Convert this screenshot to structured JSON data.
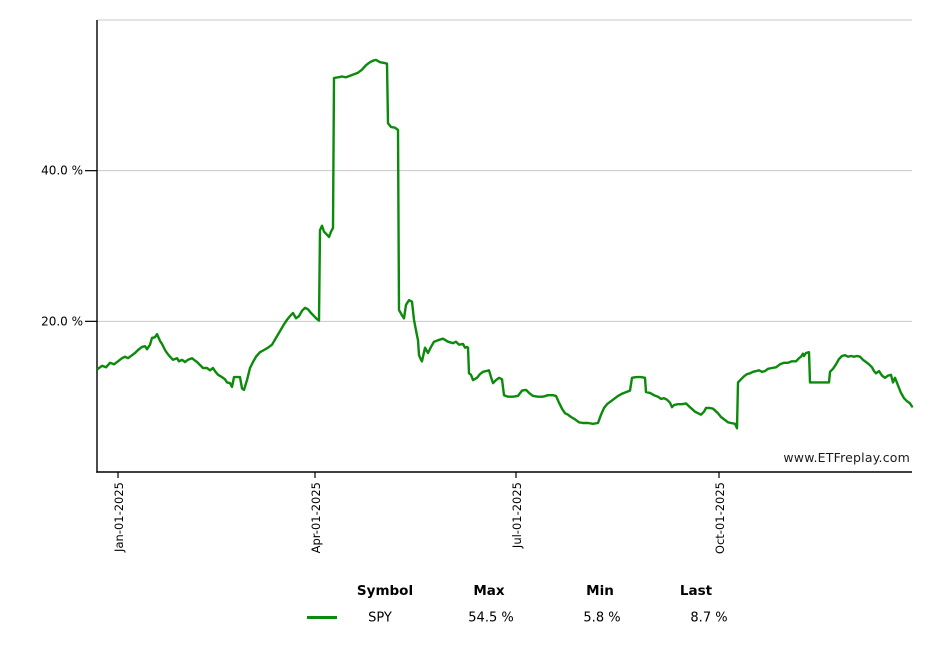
{
  "watermark": "www.ETFreplay.com",
  "colors": {
    "line": "#0b8a0b",
    "grid": "#c8c8c8",
    "axis": "#000000",
    "text": "#000000",
    "background": "#ffffff"
  },
  "chart_data": {
    "type": "line",
    "title": "",
    "xlabel": "",
    "ylabel": "",
    "grid": true,
    "legend_position": "bottom-table",
    "y_axis": {
      "lim": [
        0,
        60
      ],
      "unit": "%",
      "gridlines": [
        20,
        40,
        60
      ],
      "ticks": [
        {
          "value": 20,
          "label": "20.0 %"
        },
        {
          "value": 40,
          "label": "40.0 %"
        }
      ]
    },
    "x_axis": {
      "t_domain": [
        0,
        815
      ],
      "ticks": [
        {
          "t": 21,
          "label": "Jan-01-2025"
        },
        {
          "t": 218,
          "label": "Apr-01-2025"
        },
        {
          "t": 419,
          "label": "Jul-01-2025"
        },
        {
          "t": 622,
          "label": "Oct-01-2025"
        }
      ]
    },
    "series": [
      {
        "name": "SPY",
        "color": "#0b8a0b",
        "max_pct": 54.5,
        "min_pct": 5.8,
        "last_pct": 8.7,
        "points": [
          [
            1,
            13.7
          ],
          [
            5,
            14.1
          ],
          [
            9,
            13.9
          ],
          [
            13,
            14.5
          ],
          [
            17,
            14.3
          ],
          [
            21,
            14.7
          ],
          [
            25,
            15.1
          ],
          [
            28,
            15.3
          ],
          [
            31,
            15.1
          ],
          [
            35,
            15.5
          ],
          [
            38,
            15.8
          ],
          [
            41,
            16.2
          ],
          [
            45,
            16.6
          ],
          [
            48,
            16.7
          ],
          [
            50,
            16.3
          ],
          [
            53,
            16.9
          ],
          [
            55,
            17.8
          ],
          [
            58,
            17.9
          ],
          [
            60,
            18.3
          ],
          [
            63,
            17.4
          ],
          [
            65,
            17.0
          ],
          [
            68,
            16.2
          ],
          [
            70,
            15.8
          ],
          [
            73,
            15.3
          ],
          [
            76,
            14.9
          ],
          [
            80,
            15.1
          ],
          [
            82,
            14.7
          ],
          [
            85,
            14.9
          ],
          [
            88,
            14.6
          ],
          [
            91,
            14.9
          ],
          [
            95,
            15.1
          ],
          [
            97,
            14.9
          ],
          [
            100,
            14.6
          ],
          [
            103,
            14.2
          ],
          [
            106,
            13.8
          ],
          [
            110,
            13.8
          ],
          [
            113,
            13.5
          ],
          [
            116,
            13.8
          ],
          [
            118,
            13.4
          ],
          [
            121,
            12.9
          ],
          [
            125,
            12.6
          ],
          [
            128,
            12.3
          ],
          [
            130,
            11.9
          ],
          [
            133,
            11.8
          ],
          [
            135,
            11.3
          ],
          [
            137,
            12.6
          ],
          [
            143,
            12.6
          ],
          [
            145,
            11.1
          ],
          [
            147,
            10.9
          ],
          [
            150,
            12.2
          ],
          [
            153,
            13.8
          ],
          [
            156,
            14.6
          ],
          [
            159,
            15.3
          ],
          [
            163,
            15.9
          ],
          [
            167,
            16.2
          ],
          [
            171,
            16.5
          ],
          [
            175,
            16.9
          ],
          [
            179,
            17.8
          ],
          [
            183,
            18.7
          ],
          [
            187,
            19.6
          ],
          [
            190,
            20.2
          ],
          [
            193,
            20.7
          ],
          [
            196,
            21.1
          ],
          [
            199,
            20.4
          ],
          [
            202,
            20.7
          ],
          [
            205,
            21.4
          ],
          [
            208,
            21.8
          ],
          [
            211,
            21.6
          ],
          [
            214,
            21.1
          ],
          [
            217,
            20.7
          ],
          [
            220,
            20.3
          ],
          [
            222,
            20.1
          ],
          [
            223,
            32.1
          ],
          [
            225,
            32.7
          ],
          [
            227,
            31.9
          ],
          [
            230,
            31.5
          ],
          [
            232,
            31.2
          ],
          [
            234,
            31.9
          ],
          [
            236,
            32.4
          ],
          [
            237,
            52.3
          ],
          [
            241,
            52.4
          ],
          [
            245,
            52.5
          ],
          [
            249,
            52.4
          ],
          [
            253,
            52.6
          ],
          [
            257,
            52.8
          ],
          [
            261,
            53.0
          ],
          [
            265,
            53.4
          ],
          [
            269,
            54.0
          ],
          [
            273,
            54.4
          ],
          [
            276,
            54.6
          ],
          [
            279,
            54.7
          ],
          [
            283,
            54.4
          ],
          [
            287,
            54.3
          ],
          [
            290,
            54.2
          ],
          [
            291,
            46.3
          ],
          [
            294,
            45.8
          ],
          [
            298,
            45.7
          ],
          [
            301,
            45.4
          ],
          [
            302,
            21.5
          ],
          [
            305,
            20.8
          ],
          [
            307,
            20.4
          ],
          [
            309,
            22.2
          ],
          [
            312,
            22.8
          ],
          [
            315,
            22.6
          ],
          [
            317,
            20.2
          ],
          [
            319,
            18.8
          ],
          [
            321,
            17.5
          ],
          [
            322,
            15.5
          ],
          [
            324,
            14.9
          ],
          [
            325,
            14.7
          ],
          [
            328,
            16.5
          ],
          [
            331,
            15.8
          ],
          [
            334,
            16.6
          ],
          [
            337,
            17.3
          ],
          [
            341,
            17.5
          ],
          [
            346,
            17.7
          ],
          [
            351,
            17.3
          ],
          [
            356,
            17.1
          ],
          [
            359,
            17.3
          ],
          [
            362,
            16.9
          ],
          [
            366,
            17.0
          ],
          [
            368,
            16.5
          ],
          [
            370,
            16.6
          ],
          [
            371,
            16.5
          ],
          [
            372,
            13.1
          ],
          [
            374,
            12.9
          ],
          [
            376,
            12.2
          ],
          [
            380,
            12.5
          ],
          [
            383,
            13.0
          ],
          [
            386,
            13.3
          ],
          [
            389,
            13.4
          ],
          [
            392,
            13.5
          ],
          [
            394,
            12.6
          ],
          [
            396,
            11.8
          ],
          [
            399,
            12.2
          ],
          [
            402,
            12.5
          ],
          [
            405,
            12.3
          ],
          [
            407,
            10.2
          ],
          [
            411,
            10.0
          ],
          [
            416,
            10.0
          ],
          [
            421,
            10.1
          ],
          [
            425,
            10.8
          ],
          [
            429,
            10.9
          ],
          [
            432,
            10.5
          ],
          [
            436,
            10.1
          ],
          [
            441,
            10.0
          ],
          [
            446,
            10.0
          ],
          [
            451,
            10.2
          ],
          [
            456,
            10.2
          ],
          [
            459,
            10.1
          ],
          [
            462,
            9.2
          ],
          [
            465,
            8.4
          ],
          [
            468,
            7.8
          ],
          [
            471,
            7.6
          ],
          [
            474,
            7.3
          ],
          [
            478,
            7.0
          ],
          [
            482,
            6.6
          ],
          [
            486,
            6.5
          ],
          [
            491,
            6.5
          ],
          [
            496,
            6.4
          ],
          [
            501,
            6.5
          ],
          [
            504,
            7.6
          ],
          [
            507,
            8.5
          ],
          [
            510,
            9.0
          ],
          [
            513,
            9.3
          ],
          [
            517,
            9.7
          ],
          [
            521,
            10.1
          ],
          [
            525,
            10.4
          ],
          [
            529,
            10.6
          ],
          [
            533,
            10.8
          ],
          [
            535,
            12.5
          ],
          [
            539,
            12.6
          ],
          [
            544,
            12.6
          ],
          [
            548,
            12.5
          ],
          [
            549,
            10.6
          ],
          [
            553,
            10.5
          ],
          [
            557,
            10.2
          ],
          [
            561,
            10.0
          ],
          [
            564,
            9.7
          ],
          [
            567,
            9.8
          ],
          [
            570,
            9.6
          ],
          [
            573,
            9.2
          ],
          [
            575,
            8.6
          ],
          [
            577,
            8.9
          ],
          [
            581,
            9.0
          ],
          [
            585,
            9.0
          ],
          [
            589,
            9.1
          ],
          [
            593,
            8.6
          ],
          [
            598,
            8.0
          ],
          [
            601,
            7.8
          ],
          [
            604,
            7.6
          ],
          [
            607,
            8.0
          ],
          [
            609,
            8.5
          ],
          [
            613,
            8.5
          ],
          [
            616,
            8.4
          ],
          [
            621,
            7.8
          ],
          [
            624,
            7.3
          ],
          [
            628,
            6.9
          ],
          [
            631,
            6.6
          ],
          [
            634,
            6.5
          ],
          [
            638,
            6.4
          ],
          [
            640,
            5.8
          ],
          [
            641,
            11.9
          ],
          [
            644,
            12.3
          ],
          [
            647,
            12.7
          ],
          [
            650,
            13.0
          ],
          [
            653,
            13.1
          ],
          [
            656,
            13.3
          ],
          [
            659,
            13.4
          ],
          [
            662,
            13.5
          ],
          [
            665,
            13.3
          ],
          [
            668,
            13.4
          ],
          [
            671,
            13.7
          ],
          [
            675,
            13.8
          ],
          [
            679,
            13.9
          ],
          [
            683,
            14.3
          ],
          [
            687,
            14.5
          ],
          [
            691,
            14.5
          ],
          [
            695,
            14.7
          ],
          [
            699,
            14.7
          ],
          [
            702,
            15.1
          ],
          [
            704,
            15.3
          ],
          [
            706,
            15.7
          ],
          [
            707,
            15.4
          ],
          [
            709,
            15.8
          ],
          [
            712,
            15.9
          ],
          [
            713,
            11.9
          ],
          [
            718,
            11.9
          ],
          [
            723,
            11.9
          ],
          [
            728,
            11.9
          ],
          [
            732,
            11.9
          ],
          [
            733,
            13.3
          ],
          [
            736,
            13.7
          ],
          [
            739,
            14.3
          ],
          [
            742,
            15.0
          ],
          [
            745,
            15.4
          ],
          [
            748,
            15.5
          ],
          [
            751,
            15.3
          ],
          [
            754,
            15.4
          ],
          [
            757,
            15.3
          ],
          [
            760,
            15.4
          ],
          [
            763,
            15.3
          ],
          [
            766,
            14.9
          ],
          [
            769,
            14.6
          ],
          [
            772,
            14.3
          ],
          [
            775,
            13.9
          ],
          [
            777,
            13.4
          ],
          [
            779,
            13.1
          ],
          [
            782,
            13.4
          ],
          [
            785,
            12.8
          ],
          [
            788,
            12.5
          ],
          [
            791,
            12.8
          ],
          [
            794,
            12.9
          ],
          [
            796,
            11.9
          ],
          [
            798,
            12.5
          ],
          [
            801,
            11.5
          ],
          [
            804,
            10.5
          ],
          [
            807,
            9.8
          ],
          [
            810,
            9.4
          ],
          [
            813,
            9.1
          ],
          [
            815,
            8.7
          ]
        ]
      }
    ]
  },
  "legend_table": {
    "headers": {
      "symbol": "Symbol",
      "max": "Max",
      "min": "Min",
      "last": "Last"
    },
    "rows": [
      {
        "symbol": "SPY",
        "max": "54.5 %",
        "min": "5.8 %",
        "last": "8.7 %",
        "swatch_color": "#0b8a0b"
      }
    ]
  }
}
